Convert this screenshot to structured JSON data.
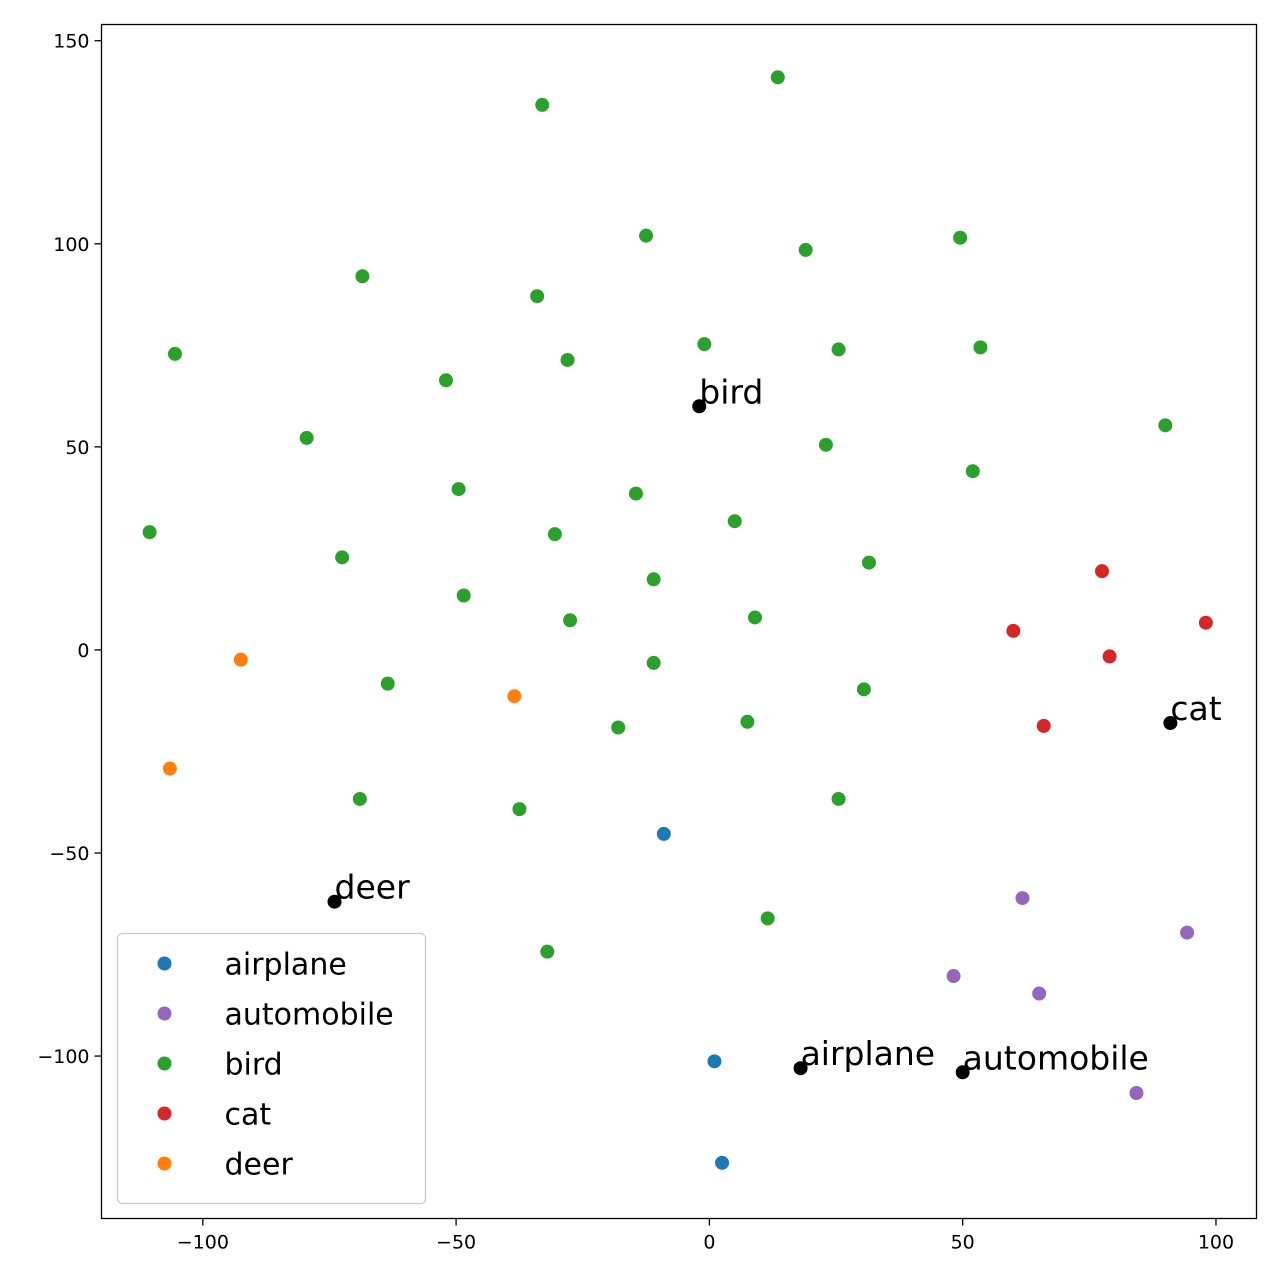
{
  "chart_data": {
    "type": "scatter",
    "title": "",
    "xlabel": "",
    "ylabel": "",
    "xlim": [
      -120,
      108
    ],
    "ylim": [
      -140,
      154
    ],
    "xticks": [
      -100,
      -50,
      0,
      50,
      100
    ],
    "yticks": [
      -100,
      -50,
      0,
      50,
      100,
      150
    ],
    "xtick_labels": [
      "−100",
      "−50",
      "0",
      "50",
      "100"
    ],
    "ytick_labels": [
      "−100",
      "−50",
      "0",
      "50",
      "100",
      "150"
    ],
    "grid": false,
    "legend_position": "lower-left",
    "series": [
      {
        "name": "airplane",
        "color": "#1f77b4",
        "points": [
          [
            -9,
            -45.3
          ],
          [
            1,
            -101.3
          ],
          [
            2.5,
            -126.3
          ]
        ]
      },
      {
        "name": "automobile",
        "color": "#9467bd",
        "points": [
          [
            61.8,
            -61.1
          ],
          [
            94.3,
            -69.6
          ],
          [
            48.2,
            -80.3
          ],
          [
            65.1,
            -84.6
          ],
          [
            84.3,
            -109.1
          ]
        ]
      },
      {
        "name": "bird",
        "color": "#2ca02c",
        "points": [
          [
            13.5,
            141.0
          ],
          [
            -33,
            134.2
          ],
          [
            -12.5,
            102.0
          ],
          [
            49.5,
            101.5
          ],
          [
            19,
            98.5
          ],
          [
            -68.5,
            92.0
          ],
          [
            -34,
            87.1
          ],
          [
            -105.5,
            72.9
          ],
          [
            -1,
            75.3
          ],
          [
            25.5,
            74.0
          ],
          [
            53.5,
            74.5
          ],
          [
            -28,
            71.4
          ],
          [
            -52,
            66.4
          ],
          [
            -79.5,
            52.2
          ],
          [
            90,
            55.3
          ],
          [
            23,
            50.5
          ],
          [
            52,
            44.0
          ],
          [
            -49.5,
            39.6
          ],
          [
            -14.5,
            38.5
          ],
          [
            5,
            31.7
          ],
          [
            -110.5,
            29.0
          ],
          [
            -30.5,
            28.5
          ],
          [
            -72.5,
            22.8
          ],
          [
            31.5,
            21.5
          ],
          [
            -11,
            17.4
          ],
          [
            -48.5,
            13.4
          ],
          [
            -27.5,
            7.3
          ],
          [
            9,
            8.0
          ],
          [
            -63.5,
            -8.3
          ],
          [
            -11,
            -3.2
          ],
          [
            30.5,
            -9.7
          ],
          [
            -18,
            -19.1
          ],
          [
            7.5,
            -17.7
          ],
          [
            -69,
            -36.7
          ],
          [
            -37.5,
            -39.2
          ],
          [
            25.5,
            -36.7
          ],
          [
            11.5,
            -66.1
          ],
          [
            -32,
            -74.3
          ]
        ]
      },
      {
        "name": "cat",
        "color": "#d62728",
        "points": [
          [
            77.5,
            19.4
          ],
          [
            60,
            4.7
          ],
          [
            98,
            6.7
          ],
          [
            79,
            -1.6
          ],
          [
            66,
            -18.7
          ]
        ]
      },
      {
        "name": "deer",
        "color": "#ff7f0e",
        "points": [
          [
            -92.5,
            -2.4
          ],
          [
            -38.5,
            -11.4
          ],
          [
            -106.5,
            -29.2
          ]
        ]
      }
    ],
    "annotations": [
      {
        "text": "bird",
        "x": -2,
        "y": 60,
        "color": "#000000"
      },
      {
        "text": "cat",
        "x": 91,
        "y": -18,
        "color": "#000000"
      },
      {
        "text": "deer",
        "x": -74,
        "y": -62,
        "color": "#000000"
      },
      {
        "text": "airplane",
        "x": 18,
        "y": -103,
        "color": "#000000"
      },
      {
        "text": "automobile",
        "x": 50,
        "y": -104,
        "color": "#000000"
      }
    ]
  }
}
